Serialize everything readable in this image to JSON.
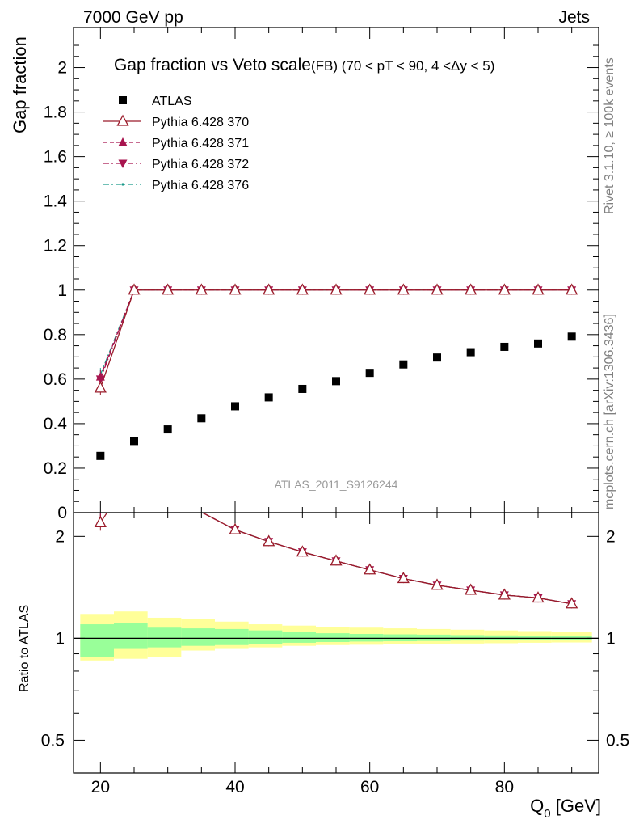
{
  "header": {
    "left": "7000 GeV pp",
    "right": "Jets"
  },
  "side_text": {
    "rivet": "Rivet 3.1.10, ≥ 100k events",
    "mcplots": "mcplots.cern.ch [arXiv:1306.3436]"
  },
  "main_plot": {
    "title": "Gap fraction vs Veto scale",
    "subtitle": "(FB) (70 < pT <  90, 4 <Δy < 5)",
    "ylabel": "Gap fraction",
    "watermark": "ATLAS_2011_S9126244",
    "yticks": [
      "0",
      "0.2",
      "0.4",
      "0.6",
      "0.8",
      "1",
      "1.2",
      "1.4",
      "1.6",
      "1.8",
      "2"
    ]
  },
  "ratio_plot": {
    "ylabel": "Ratio to ATLAS",
    "yticks_left": [
      "0.5",
      "1",
      "2"
    ],
    "yticks_right": [
      "0.5",
      "1",
      "2"
    ]
  },
  "x_axis": {
    "label": "Q",
    "label_sub": "0",
    "label_unit": " [GeV]",
    "ticks": [
      "20",
      "40",
      "60",
      "80"
    ]
  },
  "legend": [
    {
      "name": "ATLAS",
      "color": "#000000",
      "marker": "square-filled",
      "line": "none"
    },
    {
      "name": "Pythia 6.428 370",
      "color": "#9a1b2a",
      "marker": "triangle-up-open",
      "line": "solid"
    },
    {
      "name": "Pythia 6.428 371",
      "color": "#a8154f",
      "marker": "triangle-up-filled",
      "line": "dashed"
    },
    {
      "name": "Pythia 6.428 372",
      "color": "#a8154f",
      "marker": "triangle-down-filled",
      "line": "dashdot"
    },
    {
      "name": "Pythia 6.428 376",
      "color": "#1a9a8a",
      "marker": "dot",
      "line": "dashdot"
    }
  ],
  "chart_data": {
    "type": "scatter",
    "title": "Gap fraction vs Veto scale",
    "xlabel": "Q0 [GeV]",
    "ylabel": "Gap fraction",
    "xlim": [
      16,
      94
    ],
    "ylim": [
      0,
      2.18
    ],
    "ratio_ylim_log": [
      0.4,
      2.35
    ],
    "grid": false,
    "legend_position": "top-left",
    "x": [
      20,
      25,
      30,
      35,
      40,
      45,
      50,
      55,
      60,
      65,
      70,
      75,
      80,
      85,
      90
    ],
    "data": {
      "name": "ATLAS",
      "values": [
        0.255,
        0.322,
        0.374,
        0.424,
        0.478,
        0.518,
        0.556,
        0.591,
        0.628,
        0.666,
        0.697,
        0.721,
        0.745,
        0.76,
        0.791
      ],
      "band_edges": [
        17,
        22,
        27,
        32,
        37,
        42,
        47,
        52,
        57,
        62,
        67,
        72,
        77,
        82,
        87,
        93
      ],
      "stat_lo": [
        0.88,
        0.93,
        0.94,
        0.95,
        0.955,
        0.96,
        0.97,
        0.975,
        0.978,
        0.98,
        0.982,
        0.985,
        0.987,
        0.988,
        0.99
      ],
      "stat_hi": [
        1.1,
        1.11,
        1.075,
        1.07,
        1.065,
        1.055,
        1.045,
        1.035,
        1.03,
        1.027,
        1.025,
        1.022,
        1.02,
        1.018,
        1.016
      ],
      "tot_lo": [
        0.86,
        0.87,
        0.88,
        0.92,
        0.93,
        0.94,
        0.95,
        0.955,
        0.957,
        0.96,
        0.962,
        0.965,
        0.967,
        0.97,
        0.972
      ],
      "tot_hi": [
        1.18,
        1.2,
        1.15,
        1.14,
        1.12,
        1.1,
        1.09,
        1.08,
        1.075,
        1.07,
        1.065,
        1.06,
        1.055,
        1.05,
        1.045
      ]
    },
    "series": [
      {
        "name": "Pythia 6.428 370",
        "values": [
          0.56,
          1,
          1,
          1,
          1,
          1,
          1,
          1,
          1,
          1,
          1,
          1,
          1,
          1,
          1
        ],
        "err_first": 0.03
      },
      {
        "name": "Pythia 6.428 371",
        "values": [
          0.61,
          1,
          1,
          1,
          1,
          1,
          1,
          1,
          1,
          1,
          1,
          1,
          1,
          1,
          1
        ],
        "err_first": 0.03
      },
      {
        "name": "Pythia 6.428 372",
        "values": [
          0.6,
          1,
          1,
          1,
          1,
          1,
          1,
          1,
          1,
          1,
          1,
          1,
          1,
          1,
          1
        ],
        "err_first": 0.03
      },
      {
        "name": "Pythia 6.428 376",
        "values": [
          0.62,
          1,
          1,
          1,
          1,
          1,
          1,
          1,
          1,
          1,
          1,
          1,
          1,
          1,
          1
        ],
        "err_first": 0.03
      }
    ]
  }
}
